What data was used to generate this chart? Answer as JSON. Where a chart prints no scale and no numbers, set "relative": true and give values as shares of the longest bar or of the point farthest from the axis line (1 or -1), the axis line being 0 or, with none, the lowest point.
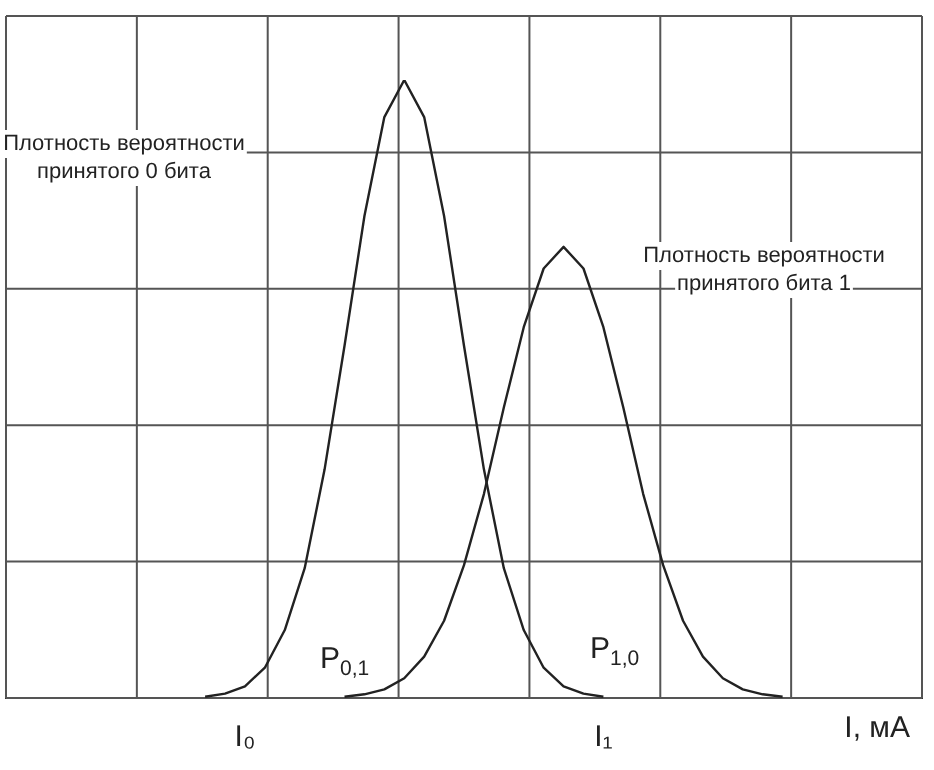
{
  "chart_data": {
    "type": "line",
    "relative": true,
    "xlabel": "I, мА",
    "grid": true,
    "marker": "none",
    "line_style": "solid",
    "legend": false,
    "categories": [
      null,
      null,
      null,
      null,
      null,
      null,
      null,
      null,
      null,
      null,
      null,
      null,
      "I₀",
      null,
      null,
      null,
      null,
      null,
      null,
      null,
      null,
      null,
      null,
      null,
      null,
      null,
      null,
      null,
      null,
      null,
      "I₁",
      null,
      null,
      null,
      null,
      null,
      null,
      null,
      null,
      null,
      null,
      null,
      null,
      null,
      null,
      null,
      null
    ],
    "series": [
      {
        "color": "#222222",
        "values": [
          null,
          null,
          null,
          null,
          null,
          null,
          null,
          null,
          null,
          null,
          0.002,
          0.007,
          0.019,
          0.049,
          0.11,
          0.21,
          0.37,
          0.57,
          0.78,
          0.94,
          1,
          0.94,
          0.78,
          0.57,
          0.37,
          0.21,
          0.11,
          0.049,
          0.019,
          0.007,
          0.002,
          null,
          null,
          null,
          null,
          null,
          null,
          null,
          null,
          null,
          null,
          null,
          null,
          null,
          null,
          null,
          null
        ]
      },
      {
        "color": "#222222",
        "values": [
          null,
          null,
          null,
          null,
          null,
          null,
          null,
          null,
          null,
          null,
          null,
          null,
          null,
          null,
          null,
          null,
          null,
          0.002,
          0.006,
          0.014,
          0.032,
          0.067,
          0.125,
          0.215,
          0.33,
          0.47,
          0.6,
          0.695,
          0.73,
          0.695,
          0.6,
          0.47,
          0.33,
          0.215,
          0.125,
          0.067,
          0.032,
          0.014,
          0.006,
          0.002,
          null,
          null,
          null,
          null,
          null,
          null,
          null
        ]
      }
    ],
    "annotations": [
      "Плотность вероятности\nпринятого 0 бита",
      "Плотность вероятности\nпринятого бита 1",
      "P$_{0,1}$",
      "P$_{1,0}$"
    ]
  }
}
